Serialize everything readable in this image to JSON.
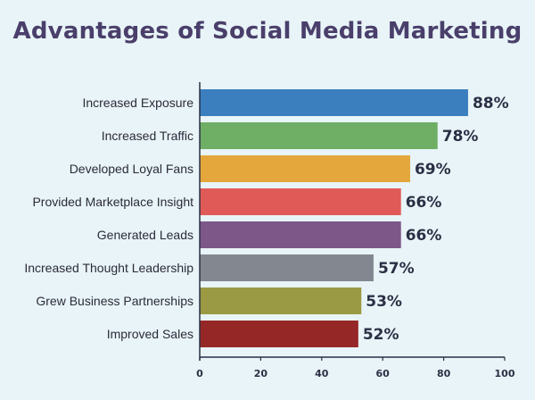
{
  "chart_data": {
    "type": "bar",
    "orientation": "horizontal",
    "title": "Advantages of Social Media Marketing",
    "categories": [
      "Increased Exposure",
      "Increased Traffic",
      "Developed Loyal Fans",
      "Provided Marketplace Insight",
      "Generated Leads",
      "Increased Thought Leadership",
      "Grew Business Partnerships",
      "Improved Sales"
    ],
    "values": [
      88,
      78,
      69,
      66,
      66,
      57,
      53,
      52
    ],
    "value_labels": [
      "88%",
      "78%",
      "69%",
      "66%",
      "66%",
      "57%",
      "53%",
      "52%"
    ],
    "colors": [
      "#3b7fbf",
      "#6faf65",
      "#e4a73c",
      "#e05a57",
      "#7c5788",
      "#83878f",
      "#9a9a44",
      "#952826"
    ],
    "xlim": [
      0,
      100
    ],
    "xticks": [
      0,
      20,
      40,
      60,
      80,
      100
    ],
    "grid": false
  }
}
